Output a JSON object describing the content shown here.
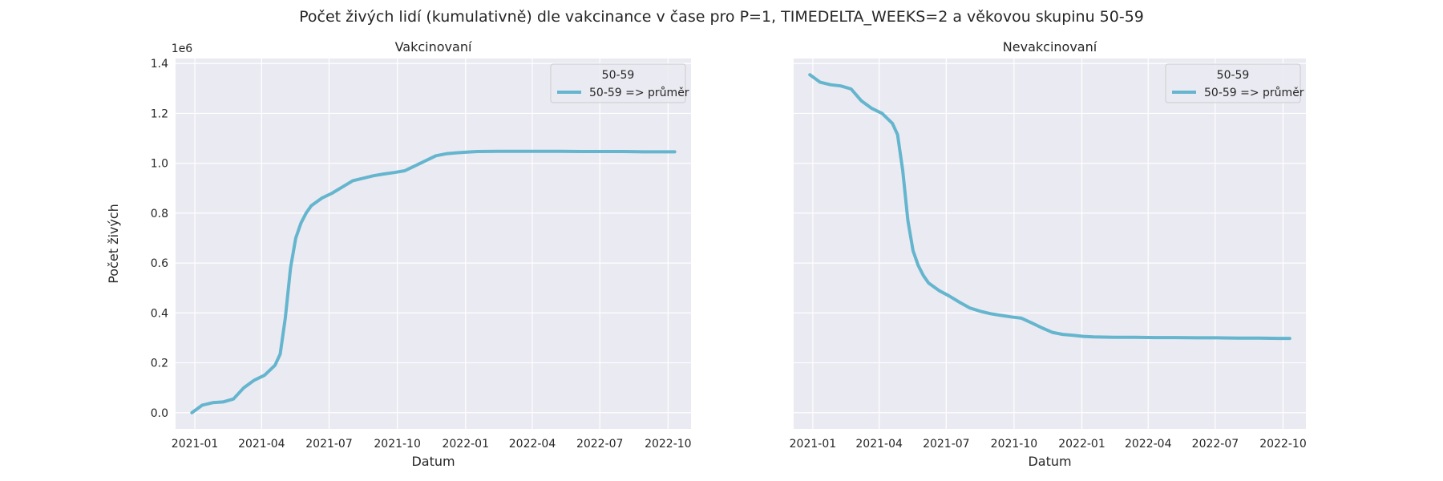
{
  "figure": {
    "suptitle": "Počet živých lidí (kumulativně) dle vakcinance v čase pro P=1, TIMEDELTA_WEEKS=2 a věkovou skupinu 50-59"
  },
  "colors": {
    "background": "#ffffff",
    "plot_bg": "#EAEAF2",
    "grid": "#ffffff",
    "line": "#64B5CD",
    "text": "#262626"
  },
  "chart_data": [
    {
      "type": "line",
      "title": "Vakcinovaní",
      "xlabel": "Datum",
      "ylabel": "Počet živých",
      "y_offset_label": "1e6",
      "y_scale_factor": 1000000,
      "xlim": [
        "2020-12-06",
        "2022-11-01"
      ],
      "ylim": [
        -0.065,
        1.42
      ],
      "x_ticks": [
        "2021-01-01",
        "2021-04-01",
        "2021-07-01",
        "2021-10-01",
        "2022-01-01",
        "2022-04-01",
        "2022-07-01",
        "2022-10-01"
      ],
      "x_tick_labels": [
        "2021-01",
        "2021-04",
        "2021-07",
        "2021-10",
        "2022-01",
        "2022-04",
        "2022-07",
        "2022-10"
      ],
      "y_ticks": [
        0.0,
        0.2,
        0.4,
        0.6,
        0.8,
        1.0,
        1.2,
        1.4
      ],
      "y_tick_labels": [
        "0.0",
        "0.2",
        "0.4",
        "0.6",
        "0.8",
        "1.0",
        "1.2",
        "1.4"
      ],
      "grid": true,
      "legend": {
        "title": "50-59",
        "placement": "top-right"
      },
      "series": [
        {
          "name": "50-59 => průměr",
          "x": [
            "2020-12-28",
            "2021-01-11",
            "2021-01-25",
            "2021-02-08",
            "2021-02-22",
            "2021-03-08",
            "2021-03-22",
            "2021-04-05",
            "2021-04-19",
            "2021-04-26",
            "2021-05-03",
            "2021-05-10",
            "2021-05-17",
            "2021-05-24",
            "2021-05-31",
            "2021-06-07",
            "2021-06-21",
            "2021-07-05",
            "2021-07-19",
            "2021-08-02",
            "2021-08-16",
            "2021-08-30",
            "2021-09-13",
            "2021-09-27",
            "2021-10-11",
            "2021-10-25",
            "2021-11-08",
            "2021-11-22",
            "2021-12-06",
            "2021-12-20",
            "2022-01-03",
            "2022-01-17",
            "2022-02-14",
            "2022-03-14",
            "2022-04-11",
            "2022-05-09",
            "2022-06-06",
            "2022-07-04",
            "2022-08-01",
            "2022-08-29",
            "2022-09-26",
            "2022-10-10"
          ],
          "y": [
            0.0,
            0.03,
            0.04,
            0.043,
            0.055,
            0.1,
            0.13,
            0.15,
            0.19,
            0.235,
            0.38,
            0.58,
            0.7,
            0.76,
            0.8,
            0.83,
            0.86,
            0.88,
            0.905,
            0.93,
            0.94,
            0.95,
            0.957,
            0.963,
            0.97,
            0.99,
            1.01,
            1.03,
            1.038,
            1.042,
            1.045,
            1.047,
            1.048,
            1.048,
            1.048,
            1.048,
            1.047,
            1.047,
            1.047,
            1.046,
            1.046,
            1.046
          ]
        }
      ]
    },
    {
      "type": "line",
      "title": "Nevakcinovaní",
      "xlabel": "Datum",
      "ylabel": "",
      "xlim": [
        "2020-12-06",
        "2022-11-01"
      ],
      "ylim": [
        -0.065,
        1.42
      ],
      "x_ticks": [
        "2021-01-01",
        "2021-04-01",
        "2021-07-01",
        "2021-10-01",
        "2022-01-01",
        "2022-04-01",
        "2022-07-01",
        "2022-10-01"
      ],
      "x_tick_labels": [
        "2021-01",
        "2021-04",
        "2021-07",
        "2021-10",
        "2022-01",
        "2022-04",
        "2022-07",
        "2022-10"
      ],
      "y_ticks": [
        0.0,
        0.2,
        0.4,
        0.6,
        0.8,
        1.0,
        1.2,
        1.4
      ],
      "grid": true,
      "shared_y": true,
      "legend": {
        "title": "50-59",
        "placement": "top-right"
      },
      "series": [
        {
          "name": "50-59 => průměr",
          "x": [
            "2020-12-28",
            "2021-01-11",
            "2021-01-25",
            "2021-02-08",
            "2021-02-22",
            "2021-03-08",
            "2021-03-22",
            "2021-04-05",
            "2021-04-19",
            "2021-04-26",
            "2021-05-03",
            "2021-05-10",
            "2021-05-17",
            "2021-05-24",
            "2021-05-31",
            "2021-06-07",
            "2021-06-21",
            "2021-07-05",
            "2021-07-19",
            "2021-08-02",
            "2021-08-16",
            "2021-08-30",
            "2021-09-13",
            "2021-09-27",
            "2021-10-11",
            "2021-10-25",
            "2021-11-08",
            "2021-11-22",
            "2021-12-06",
            "2021-12-20",
            "2022-01-03",
            "2022-01-17",
            "2022-02-14",
            "2022-03-14",
            "2022-04-11",
            "2022-05-09",
            "2022-06-06",
            "2022-07-04",
            "2022-08-01",
            "2022-08-29",
            "2022-09-26",
            "2022-10-10"
          ],
          "y": [
            1.355,
            1.325,
            1.315,
            1.31,
            1.298,
            1.25,
            1.22,
            1.2,
            1.16,
            1.115,
            0.97,
            0.77,
            0.65,
            0.59,
            0.55,
            0.52,
            0.49,
            0.468,
            0.443,
            0.42,
            0.407,
            0.397,
            0.39,
            0.384,
            0.379,
            0.36,
            0.34,
            0.322,
            0.314,
            0.31,
            0.306,
            0.304,
            0.302,
            0.302,
            0.301,
            0.301,
            0.3,
            0.3,
            0.299,
            0.299,
            0.298,
            0.298
          ]
        }
      ]
    }
  ]
}
